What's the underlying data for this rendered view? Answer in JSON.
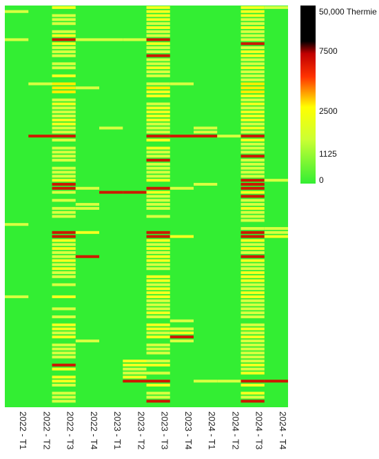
{
  "chart_data": {
    "type": "heatmap",
    "title": "",
    "xlabel": "",
    "ylabel": "",
    "categories": [
      "2022 - T1",
      "2022 - T2",
      "2022 - T3",
      "2022 - T4",
      "2023 - T1",
      "2023 - T2",
      "2023 - T3",
      "2023 - T4",
      "2024 - T1",
      "2024 - T2",
      "2024 - T3",
      "2024 - T4"
    ],
    "row_count": 100,
    "grid": false,
    "legend_placement": "right",
    "colorbar": {
      "ticks": [
        {
          "value": 50000,
          "label": "50,000 Thermie"
        },
        {
          "value": 7500,
          "label": "7500"
        },
        {
          "value": 2500,
          "label": "2500"
        },
        {
          "value": 1125,
          "label": "1125"
        },
        {
          "value": 0,
          "label": "0"
        }
      ],
      "colors": [
        "#000000",
        "#c00000",
        "#ff3300",
        "#ffff00",
        "#ccff33",
        "#33ee33"
      ]
    },
    "cells": [
      [
        0,
        1,
        1500
      ],
      [
        0,
        8,
        1300
      ],
      [
        0,
        54,
        1300
      ],
      [
        0,
        72,
        1300
      ],
      [
        1,
        19,
        1200
      ],
      [
        1,
        32,
        5500
      ],
      [
        2,
        0,
        1800
      ],
      [
        2,
        2,
        1500
      ],
      [
        2,
        3,
        1500
      ],
      [
        2,
        4,
        1500
      ],
      [
        2,
        6,
        1500
      ],
      [
        2,
        7,
        1800
      ],
      [
        2,
        8,
        5800
      ],
      [
        2,
        9,
        1800
      ],
      [
        2,
        10,
        1500
      ],
      [
        2,
        11,
        1500
      ],
      [
        2,
        12,
        1500
      ],
      [
        2,
        14,
        1500
      ],
      [
        2,
        15,
        1500
      ],
      [
        2,
        17,
        1800
      ],
      [
        2,
        19,
        2600
      ],
      [
        2,
        20,
        2600
      ],
      [
        2,
        21,
        2600
      ],
      [
        2,
        23,
        1500
      ],
      [
        2,
        24,
        1800
      ],
      [
        2,
        25,
        1500
      ],
      [
        2,
        26,
        1500
      ],
      [
        2,
        27,
        1500
      ],
      [
        2,
        28,
        2200
      ],
      [
        2,
        29,
        1800
      ],
      [
        2,
        30,
        1500
      ],
      [
        2,
        31,
        1500
      ],
      [
        2,
        32,
        5500
      ],
      [
        2,
        33,
        1500
      ],
      [
        2,
        35,
        1500
      ],
      [
        2,
        36,
        1500
      ],
      [
        2,
        37,
        1500
      ],
      [
        2,
        38,
        1500
      ],
      [
        2,
        40,
        1500
      ],
      [
        2,
        41,
        1500
      ],
      [
        2,
        42,
        1500
      ],
      [
        2,
        43,
        1800
      ],
      [
        2,
        44,
        5500
      ],
      [
        2,
        45,
        5000
      ],
      [
        2,
        46,
        1500
      ],
      [
        2,
        48,
        1500
      ],
      [
        2,
        50,
        1500
      ],
      [
        2,
        51,
        1500
      ],
      [
        2,
        52,
        1300
      ],
      [
        2,
        56,
        5800
      ],
      [
        2,
        57,
        7000
      ],
      [
        2,
        58,
        1800
      ],
      [
        2,
        59,
        1500
      ],
      [
        2,
        60,
        1800
      ],
      [
        2,
        61,
        1500
      ],
      [
        2,
        62,
        1500
      ],
      [
        2,
        63,
        1800
      ],
      [
        2,
        64,
        1500
      ],
      [
        2,
        65,
        2000
      ],
      [
        2,
        66,
        1500
      ],
      [
        2,
        67,
        1500
      ],
      [
        2,
        69,
        1500
      ],
      [
        2,
        72,
        2200
      ],
      [
        2,
        75,
        1500
      ],
      [
        2,
        77,
        1500
      ],
      [
        2,
        79,
        1800
      ],
      [
        2,
        80,
        1800
      ],
      [
        2,
        81,
        1500
      ],
      [
        2,
        82,
        1800
      ],
      [
        2,
        84,
        1500
      ],
      [
        2,
        85,
        1500
      ],
      [
        2,
        86,
        1500
      ],
      [
        2,
        87,
        1500
      ],
      [
        2,
        89,
        5000
      ],
      [
        2,
        90,
        1800
      ],
      [
        2,
        92,
        2200
      ],
      [
        2,
        93,
        2200
      ],
      [
        2,
        94,
        1500
      ],
      [
        2,
        96,
        1500
      ],
      [
        2,
        97,
        1500
      ],
      [
        2,
        98,
        1500
      ],
      [
        3,
        8,
        1400
      ],
      [
        3,
        20,
        1300
      ],
      [
        3,
        45,
        1300
      ],
      [
        3,
        49,
        1500
      ],
      [
        3,
        50,
        1500
      ],
      [
        3,
        56,
        2200
      ],
      [
        3,
        62,
        5500
      ],
      [
        3,
        83,
        1300
      ],
      [
        4,
        8,
        1500
      ],
      [
        4,
        30,
        1500
      ],
      [
        4,
        46,
        5500
      ],
      [
        5,
        8,
        1500
      ],
      [
        5,
        46,
        5500
      ],
      [
        5,
        88,
        1800
      ],
      [
        5,
        89,
        1800
      ],
      [
        5,
        90,
        1500
      ],
      [
        5,
        91,
        1500
      ],
      [
        5,
        92,
        2200
      ],
      [
        5,
        93,
        4800
      ],
      [
        6,
        0,
        2200
      ],
      [
        6,
        1,
        2200
      ],
      [
        6,
        2,
        1800
      ],
      [
        6,
        3,
        1800
      ],
      [
        6,
        4,
        1500
      ],
      [
        6,
        5,
        1800
      ],
      [
        6,
        6,
        1500
      ],
      [
        6,
        7,
        1500
      ],
      [
        6,
        8,
        5800
      ],
      [
        6,
        9,
        1800
      ],
      [
        6,
        10,
        1500
      ],
      [
        6,
        11,
        1500
      ],
      [
        6,
        12,
        5500
      ],
      [
        6,
        13,
        1500
      ],
      [
        6,
        14,
        1500
      ],
      [
        6,
        15,
        1800
      ],
      [
        6,
        16,
        1500
      ],
      [
        6,
        17,
        1500
      ],
      [
        6,
        19,
        1500
      ],
      [
        6,
        20,
        2600
      ],
      [
        6,
        21,
        2200
      ],
      [
        6,
        22,
        1800
      ],
      [
        6,
        24,
        1500
      ],
      [
        6,
        25,
        1800
      ],
      [
        6,
        26,
        2200
      ],
      [
        6,
        27,
        2200
      ],
      [
        6,
        28,
        1800
      ],
      [
        6,
        29,
        1500
      ],
      [
        6,
        30,
        1500
      ],
      [
        6,
        31,
        1500
      ],
      [
        6,
        32,
        5500
      ],
      [
        6,
        33,
        1800
      ],
      [
        6,
        35,
        1800
      ],
      [
        6,
        36,
        1500
      ],
      [
        6,
        37,
        1500
      ],
      [
        6,
        38,
        5800
      ],
      [
        6,
        39,
        1500
      ],
      [
        6,
        40,
        1500
      ],
      [
        6,
        41,
        1500
      ],
      [
        6,
        42,
        1500
      ],
      [
        6,
        43,
        1800
      ],
      [
        6,
        45,
        5500
      ],
      [
        6,
        46,
        1800
      ],
      [
        6,
        47,
        1500
      ],
      [
        6,
        48,
        1500
      ],
      [
        6,
        49,
        1500
      ],
      [
        6,
        50,
        1500
      ],
      [
        6,
        52,
        1500
      ],
      [
        6,
        56,
        5800
      ],
      [
        6,
        57,
        7000
      ],
      [
        6,
        58,
        1800
      ],
      [
        6,
        59,
        1500
      ],
      [
        6,
        60,
        1800
      ],
      [
        6,
        61,
        1500
      ],
      [
        6,
        62,
        2200
      ],
      [
        6,
        63,
        2200
      ],
      [
        6,
        64,
        1500
      ],
      [
        6,
        65,
        1500
      ],
      [
        6,
        67,
        1800
      ],
      [
        6,
        68,
        2200
      ],
      [
        6,
        69,
        1500
      ],
      [
        6,
        70,
        2200
      ],
      [
        6,
        71,
        1800
      ],
      [
        6,
        72,
        1800
      ],
      [
        6,
        73,
        1500
      ],
      [
        6,
        74,
        1500
      ],
      [
        6,
        75,
        1500
      ],
      [
        6,
        76,
        1800
      ],
      [
        6,
        77,
        1500
      ],
      [
        6,
        79,
        1800
      ],
      [
        6,
        80,
        1800
      ],
      [
        6,
        81,
        1500
      ],
      [
        6,
        82,
        1800
      ],
      [
        6,
        84,
        1500
      ],
      [
        6,
        85,
        1500
      ],
      [
        6,
        86,
        1500
      ],
      [
        6,
        88,
        1500
      ],
      [
        6,
        89,
        1800
      ],
      [
        6,
        91,
        1500
      ],
      [
        6,
        93,
        5500
      ],
      [
        6,
        94,
        1800
      ],
      [
        6,
        96,
        1500
      ],
      [
        6,
        97,
        1500
      ],
      [
        6,
        98,
        5800
      ],
      [
        7,
        19,
        1500
      ],
      [
        7,
        32,
        5500
      ],
      [
        7,
        45,
        1500
      ],
      [
        7,
        57,
        2200
      ],
      [
        7,
        78,
        1300
      ],
      [
        7,
        80,
        1500
      ],
      [
        7,
        81,
        2200
      ],
      [
        7,
        82,
        4800
      ],
      [
        7,
        83,
        1500
      ],
      [
        8,
        30,
        1500
      ],
      [
        8,
        31,
        1300
      ],
      [
        8,
        32,
        5500
      ],
      [
        8,
        44,
        1500
      ],
      [
        8,
        93,
        1300
      ],
      [
        9,
        32,
        1500
      ],
      [
        9,
        93,
        1300
      ],
      [
        10,
        0,
        2200
      ],
      [
        10,
        1,
        1800
      ],
      [
        10,
        2,
        1800
      ],
      [
        10,
        3,
        1500
      ],
      [
        10,
        4,
        1500
      ],
      [
        10,
        5,
        1800
      ],
      [
        10,
        6,
        1500
      ],
      [
        10,
        7,
        1500
      ],
      [
        10,
        8,
        1500
      ],
      [
        10,
        9,
        5500
      ],
      [
        10,
        10,
        1500
      ],
      [
        10,
        11,
        1800
      ],
      [
        10,
        12,
        1800
      ],
      [
        10,
        13,
        1500
      ],
      [
        10,
        14,
        1500
      ],
      [
        10,
        15,
        1800
      ],
      [
        10,
        16,
        1500
      ],
      [
        10,
        17,
        1500
      ],
      [
        10,
        18,
        1500
      ],
      [
        10,
        19,
        2600
      ],
      [
        10,
        20,
        2600
      ],
      [
        10,
        21,
        2600
      ],
      [
        10,
        22,
        1800
      ],
      [
        10,
        23,
        1500
      ],
      [
        10,
        24,
        1800
      ],
      [
        10,
        25,
        1500
      ],
      [
        10,
        26,
        1800
      ],
      [
        10,
        27,
        1800
      ],
      [
        10,
        28,
        1800
      ],
      [
        10,
        29,
        1500
      ],
      [
        10,
        30,
        1800
      ],
      [
        10,
        31,
        1500
      ],
      [
        10,
        32,
        5800
      ],
      [
        10,
        33,
        1800
      ],
      [
        10,
        34,
        1500
      ],
      [
        10,
        35,
        1500
      ],
      [
        10,
        36,
        1500
      ],
      [
        10,
        37,
        5500
      ],
      [
        10,
        38,
        1500
      ],
      [
        10,
        39,
        1500
      ],
      [
        10,
        40,
        1500
      ],
      [
        10,
        41,
        1500
      ],
      [
        10,
        42,
        1500
      ],
      [
        10,
        43,
        5500
      ],
      [
        10,
        44,
        5800
      ],
      [
        10,
        45,
        5500
      ],
      [
        10,
        46,
        1800
      ],
      [
        10,
        47,
        5500
      ],
      [
        10,
        48,
        1500
      ],
      [
        10,
        49,
        1500
      ],
      [
        10,
        50,
        1800
      ],
      [
        10,
        51,
        1500
      ],
      [
        10,
        52,
        1500
      ],
      [
        10,
        53,
        1500
      ],
      [
        10,
        55,
        1500
      ],
      [
        10,
        56,
        5800
      ],
      [
        10,
        57,
        7000
      ],
      [
        10,
        58,
        1800
      ],
      [
        10,
        59,
        1500
      ],
      [
        10,
        60,
        1800
      ],
      [
        10,
        61,
        1500
      ],
      [
        10,
        62,
        5500
      ],
      [
        10,
        63,
        1800
      ],
      [
        10,
        64,
        1500
      ],
      [
        10,
        65,
        1500
      ],
      [
        10,
        66,
        1800
      ],
      [
        10,
        67,
        2200
      ],
      [
        10,
        68,
        2200
      ],
      [
        10,
        69,
        1500
      ],
      [
        10,
        70,
        1500
      ],
      [
        10,
        71,
        1800
      ],
      [
        10,
        72,
        1800
      ],
      [
        10,
        73,
        1500
      ],
      [
        10,
        74,
        1500
      ],
      [
        10,
        75,
        1500
      ],
      [
        10,
        76,
        1500
      ],
      [
        10,
        77,
        1500
      ],
      [
        10,
        79,
        1500
      ],
      [
        10,
        80,
        1800
      ],
      [
        10,
        81,
        1500
      ],
      [
        10,
        82,
        1800
      ],
      [
        10,
        83,
        1500
      ],
      [
        10,
        84,
        1500
      ],
      [
        10,
        85,
        1500
      ],
      [
        10,
        86,
        1500
      ],
      [
        10,
        87,
        1500
      ],
      [
        10,
        88,
        1500
      ],
      [
        10,
        89,
        1800
      ],
      [
        10,
        90,
        1500
      ],
      [
        10,
        91,
        2200
      ],
      [
        10,
        93,
        5500
      ],
      [
        10,
        94,
        1800
      ],
      [
        10,
        96,
        1800
      ],
      [
        10,
        97,
        1500
      ],
      [
        10,
        98,
        5800
      ],
      [
        11,
        0,
        1300
      ],
      [
        11,
        43,
        1500
      ],
      [
        11,
        55,
        1500
      ],
      [
        11,
        56,
        1500
      ],
      [
        11,
        57,
        1800
      ],
      [
        11,
        93,
        5800
      ]
    ]
  }
}
